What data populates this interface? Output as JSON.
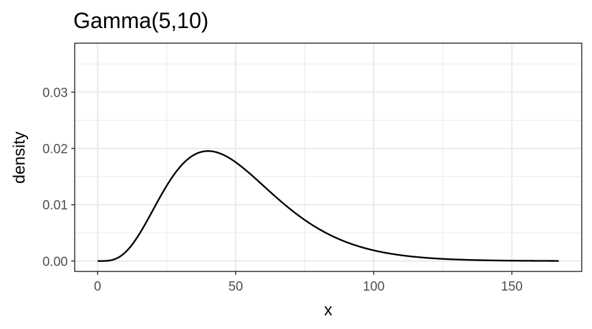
{
  "chart_data": {
    "type": "line",
    "title": "Gamma(5,10)",
    "xlabel": "x",
    "ylabel": "density",
    "xlim": [
      -8.3,
      175.3
    ],
    "ylim": [
      -0.00185,
      0.0387
    ],
    "x_ticks": [
      0,
      50,
      100,
      150
    ],
    "x_tick_labels": [
      "0",
      "50",
      "100",
      "150"
    ],
    "y_ticks": [
      0,
      0.01,
      0.02,
      0.03
    ],
    "y_tick_labels": [
      "0.00",
      "0.01",
      "0.02",
      "0.03"
    ],
    "x_minor_ticks": [
      25,
      75,
      125
    ],
    "y_minor_ticks": [
      0.005,
      0.015,
      0.025,
      0.035
    ],
    "grid": true,
    "theme": "bw",
    "series": [
      {
        "distribution": "gamma",
        "shape": 5,
        "scale": 10,
        "x_range": [
          0,
          167
        ],
        "color": "#000000"
      }
    ]
  }
}
